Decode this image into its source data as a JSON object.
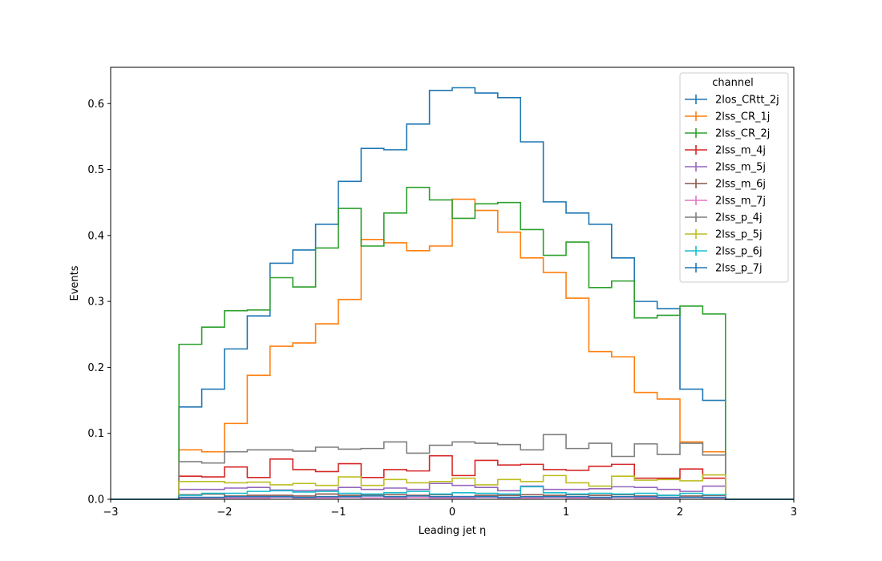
{
  "chart_data": {
    "type": "step-histogram",
    "xlabel": "Leading jet  η",
    "ylabel": "Events",
    "xlim": [
      -3,
      3
    ],
    "ylim": [
      0,
      0.655
    ],
    "xticks": [
      -3,
      -2,
      -1,
      0,
      1,
      2,
      3
    ],
    "yticks": [
      0.0,
      0.1,
      0.2,
      0.3,
      0.4,
      0.5,
      0.6
    ],
    "grid": false,
    "legend_title": "channel",
    "legend_position": "top-right",
    "bin_edges": [
      -2.4,
      -2.2,
      -2.0,
      -1.8,
      -1.6,
      -1.4,
      -1.2,
      -1.0,
      -0.8,
      -0.6,
      -0.4,
      -0.2,
      0.0,
      0.2,
      0.4,
      0.6,
      0.8,
      1.0,
      1.2,
      1.4,
      1.6,
      1.8,
      2.0,
      2.2,
      2.4
    ],
    "series": [
      {
        "name": "2los_CRtt_2j",
        "color": "#1f77b4",
        "values": [
          0.14,
          0.167,
          0.228,
          0.278,
          0.358,
          0.378,
          0.417,
          0.482,
          0.532,
          0.53,
          0.569,
          0.62,
          0.624,
          0.616,
          0.609,
          0.542,
          0.451,
          0.434,
          0.417,
          0.366,
          0.3,
          0.289,
          0.167,
          0.15
        ]
      },
      {
        "name": "2lss_CR_1j",
        "color": "#ff7f0e",
        "values": [
          0.075,
          0.072,
          0.115,
          0.188,
          0.232,
          0.237,
          0.266,
          0.303,
          0.394,
          0.389,
          0.377,
          0.384,
          0.455,
          0.438,
          0.405,
          0.366,
          0.344,
          0.305,
          0.224,
          0.216,
          0.162,
          0.152,
          0.087,
          0.072
        ]
      },
      {
        "name": "2lss_CR_2j",
        "color": "#2ca02c",
        "values": [
          0.235,
          0.261,
          0.286,
          0.287,
          0.336,
          0.322,
          0.381,
          0.441,
          0.384,
          0.434,
          0.473,
          0.454,
          0.426,
          0.448,
          0.45,
          0.409,
          0.37,
          0.39,
          0.321,
          0.331,
          0.275,
          0.279,
          0.293,
          0.281
        ]
      },
      {
        "name": "2lss_m_4j",
        "color": "#d62728",
        "values": [
          0.035,
          0.034,
          0.049,
          0.033,
          0.061,
          0.045,
          0.042,
          0.054,
          0.033,
          0.045,
          0.043,
          0.066,
          0.036,
          0.059,
          0.052,
          0.053,
          0.045,
          0.044,
          0.05,
          0.053,
          0.032,
          0.032,
          0.046,
          0.032
        ]
      },
      {
        "name": "2lss_m_5j",
        "color": "#9467bd",
        "values": [
          0.015,
          0.015,
          0.017,
          0.018,
          0.014,
          0.013,
          0.014,
          0.018,
          0.015,
          0.017,
          0.015,
          0.024,
          0.021,
          0.018,
          0.013,
          0.02,
          0.015,
          0.015,
          0.016,
          0.019,
          0.018,
          0.015,
          0.012,
          0.02
        ]
      },
      {
        "name": "2lss_m_6j",
        "color": "#8c564b",
        "values": [
          0.007,
          0.008,
          0.005,
          0.006,
          0.006,
          0.005,
          0.008,
          0.006,
          0.007,
          0.007,
          0.006,
          0.007,
          0.004,
          0.006,
          0.006,
          0.007,
          0.006,
          0.007,
          0.006,
          0.007,
          0.005,
          0.006,
          0.005,
          0.006
        ]
      },
      {
        "name": "2lss_m_7j",
        "color": "#e377c2",
        "values": [
          0.002,
          0.002,
          0.002,
          0.002,
          0.003,
          0.002,
          0.002,
          0.003,
          0.002,
          0.002,
          0.003,
          0.002,
          0.002,
          0.003,
          0.002,
          0.002,
          0.003,
          0.002,
          0.002,
          0.003,
          0.002,
          0.002,
          0.003,
          0.002
        ]
      },
      {
        "name": "2lss_p_4j",
        "color": "#7f7f7f",
        "values": [
          0.057,
          0.055,
          0.072,
          0.075,
          0.075,
          0.073,
          0.079,
          0.076,
          0.077,
          0.087,
          0.07,
          0.082,
          0.087,
          0.085,
          0.083,
          0.075,
          0.098,
          0.077,
          0.085,
          0.065,
          0.084,
          0.068,
          0.085,
          0.067
        ]
      },
      {
        "name": "2lss_p_5j",
        "color": "#bcbd22",
        "values": [
          0.027,
          0.027,
          0.025,
          0.026,
          0.022,
          0.024,
          0.021,
          0.034,
          0.021,
          0.03,
          0.025,
          0.027,
          0.032,
          0.022,
          0.03,
          0.027,
          0.036,
          0.025,
          0.02,
          0.035,
          0.029,
          0.03,
          0.028,
          0.037
        ]
      },
      {
        "name": "2lss_p_6j",
        "color": "#17becf",
        "values": [
          0.006,
          0.009,
          0.009,
          0.012,
          0.013,
          0.011,
          0.012,
          0.009,
          0.008,
          0.01,
          0.012,
          0.008,
          0.01,
          0.009,
          0.008,
          0.019,
          0.01,
          0.008,
          0.009,
          0.008,
          0.009,
          0.006,
          0.009,
          0.007
        ]
      },
      {
        "name": "2lss_p_7j",
        "color": "#1f77b4",
        "values": [
          0.003,
          0.003,
          0.004,
          0.004,
          0.004,
          0.003,
          0.004,
          0.004,
          0.005,
          0.004,
          0.005,
          0.004,
          0.004,
          0.004,
          0.003,
          0.004,
          0.004,
          0.004,
          0.003,
          0.004,
          0.004,
          0.003,
          0.003,
          0.003
        ]
      }
    ]
  }
}
